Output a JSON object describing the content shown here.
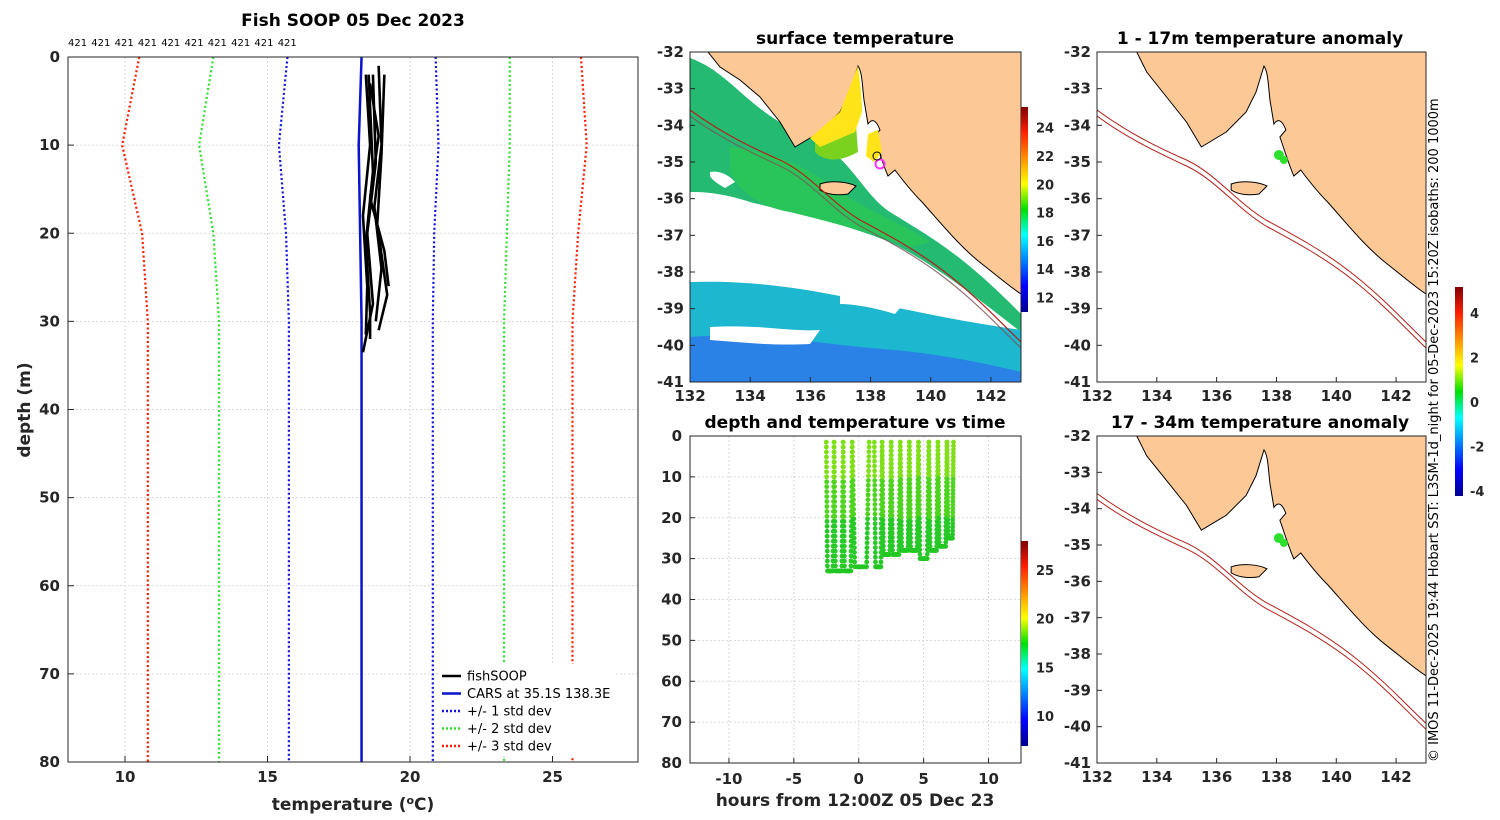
{
  "figure": {
    "credit": "© IMOS 11-Dec-2025 19:44 Hobart SST: L3SM-1d_night for 05-Dec-2023 15:20Z isobaths: 200 1000m"
  },
  "colors": {
    "land": "#fcc896",
    "fishsoop": "#000000",
    "cars": "#0a14c8",
    "std1": "#1010e0",
    "std2": "#2ee02e",
    "std3": "#ff1a00",
    "isobath": "#b3201a",
    "coast": "#000000"
  },
  "chart_data": [
    {
      "id": "profile",
      "type": "line",
      "title": "Fish SOOP 05 Dec 2023",
      "xlabel": "temperature (",
      "xlabel_sup": "o",
      "xlabel_end": "C)",
      "ylabel": "depth (m)",
      "xlim": [
        8,
        28
      ],
      "ylim": [
        0,
        80
      ],
      "xticks": [
        "10",
        "15",
        "20",
        "25"
      ],
      "yticks": [
        "0",
        "10",
        "20",
        "30",
        "40",
        "50",
        "60",
        "70",
        "80"
      ],
      "counts": [
        "421",
        "421",
        "421",
        "421",
        "421",
        "421",
        "421",
        "421",
        "421",
        "421"
      ],
      "legend": {
        "position": "bottom-right",
        "entries": [
          {
            "label": "fishSOOP",
            "style": "solid",
            "color": "#000000"
          },
          {
            "label": "CARS at 35.1S 138.3E",
            "style": "solid",
            "color": "#0a14c8"
          },
          {
            "label": "+/- 1 std dev",
            "style": "dotted",
            "color": "#1010e0"
          },
          {
            "label": "+/- 2 std dev",
            "style": "dotted",
            "color": "#2ee02e"
          },
          {
            "label": "+/- 3 std dev",
            "style": "dotted",
            "color": "#ff1a00"
          }
        ]
      },
      "depths": [
        0,
        10,
        20,
        30,
        80
      ],
      "cars_mean": [
        18.3,
        18.2,
        18.25,
        18.3,
        18.3
      ],
      "std_curves": [
        {
          "name": "-1",
          "color": "#1010e0",
          "temps": [
            15.7,
            15.4,
            15.65,
            15.75,
            15.75
          ]
        },
        {
          "name": "+1",
          "color": "#1010e0",
          "temps": [
            20.9,
            21.0,
            20.85,
            20.8,
            20.8
          ]
        },
        {
          "name": "-2",
          "color": "#2ee02e",
          "temps": [
            13.1,
            12.6,
            13.1,
            13.3,
            13.3
          ]
        },
        {
          "name": "+2",
          "color": "#2ee02e",
          "temps": [
            23.5,
            23.5,
            23.4,
            23.3,
            23.3
          ]
        },
        {
          "name": "-3",
          "color": "#ff1a00",
          "temps": [
            10.5,
            9.9,
            10.6,
            10.8,
            10.8
          ]
        },
        {
          "name": "+3",
          "color": "#ff1a00",
          "temps": [
            26.0,
            26.2,
            25.9,
            25.7,
            25.7
          ]
        }
      ],
      "fish_profiles": [
        {
          "d": [
            2,
            10,
            18,
            26,
            31.5
          ],
          "t": [
            18.45,
            18.6,
            18.35,
            18.5,
            18.45
          ]
        },
        {
          "d": [
            2,
            12,
            20,
            28,
            33.5
          ],
          "t": [
            18.7,
            18.8,
            18.5,
            18.7,
            18.35
          ]
        },
        {
          "d": [
            1,
            10,
            17,
            24,
            30
          ],
          "t": [
            18.9,
            19.0,
            18.75,
            19.0,
            18.8
          ]
        },
        {
          "d": [
            2,
            11,
            19,
            27,
            31
          ],
          "t": [
            19.1,
            19.0,
            18.85,
            19.2,
            18.9
          ]
        },
        {
          "d": [
            3,
            9,
            16,
            22,
            26
          ],
          "t": [
            18.6,
            18.9,
            18.6,
            19.1,
            19.25
          ]
        },
        {
          "d": [
            2,
            13,
            21,
            29,
            32
          ],
          "t": [
            18.55,
            18.7,
            18.45,
            18.6,
            18.6
          ]
        }
      ]
    },
    {
      "id": "sst",
      "type": "heatmap",
      "title": "surface temperature",
      "xlim": [
        132,
        143
      ],
      "ylim": [
        -41,
        -32
      ],
      "xticks": [
        "132",
        "134",
        "136",
        "138",
        "140",
        "142"
      ],
      "yticks": [
        "-32",
        "-33",
        "-34",
        "-35",
        "-36",
        "-37",
        "-38",
        "-39",
        "-40",
        "-41"
      ],
      "colorbar": {
        "range": [
          11,
          25.5
        ],
        "ticks": [
          "12",
          "14",
          "16",
          "18",
          "20",
          "22",
          "24"
        ],
        "colormap": "jet"
      },
      "marker": {
        "lon": 138.3,
        "lat": -35.1,
        "color": "#ff33ff"
      },
      "isobaths": [
        "200",
        "1000"
      ]
    },
    {
      "id": "timeseries",
      "type": "scatter",
      "title": "depth and temperature vs time",
      "xlabel": "hours from 12:00Z 05 Dec 23",
      "xlim": [
        -13,
        12.5
      ],
      "ylim": [
        0,
        80
      ],
      "xticks": [
        "-10",
        "-5",
        "0",
        "5",
        "10"
      ],
      "yticks": [
        "0",
        "10",
        "20",
        "30",
        "40",
        "50",
        "60",
        "70",
        "80"
      ],
      "colorbar": {
        "range": [
          7,
          28
        ],
        "ticks": [
          "10",
          "15",
          "20",
          "25"
        ],
        "colormap": "jet"
      },
      "dives": [
        {
          "t0": -2.5,
          "t1": -1.9,
          "max_depth": 33
        },
        {
          "t0": -1.9,
          "t1": -1.2,
          "max_depth": 33
        },
        {
          "t0": -1.2,
          "t1": -0.5,
          "max_depth": 33
        },
        {
          "t0": -0.5,
          "t1": 0.8,
          "max_depth": 32
        },
        {
          "t0": 1.2,
          "t1": 1.8,
          "max_depth": 32
        },
        {
          "t0": 1.8,
          "t1": 2.5,
          "max_depth": 29
        },
        {
          "t0": 2.5,
          "t1": 3.2,
          "max_depth": 29
        },
        {
          "t0": 3.2,
          "t1": 3.9,
          "max_depth": 28
        },
        {
          "t0": 3.9,
          "t1": 4.6,
          "max_depth": 28
        },
        {
          "t0": 4.6,
          "t1": 5.4,
          "max_depth": 30
        },
        {
          "t0": 5.4,
          "t1": 6.1,
          "max_depth": 28
        },
        {
          "t0": 6.1,
          "t1": 6.8,
          "max_depth": 27
        },
        {
          "t0": 6.8,
          "t1": 7.3,
          "max_depth": 25
        }
      ]
    },
    {
      "id": "anom1",
      "type": "heatmap",
      "title": "1 - 17m temperature anomaly",
      "xlim": [
        132,
        143
      ],
      "ylim": [
        -41,
        -32
      ],
      "xticks": [
        "132",
        "134",
        "136",
        "138",
        "140",
        "142"
      ],
      "yticks": [
        "-32",
        "-33",
        "-34",
        "-35",
        "-36",
        "-37",
        "-38",
        "-39",
        "-40",
        "-41"
      ]
    },
    {
      "id": "anom2",
      "type": "heatmap",
      "title": "17 - 34m temperature anomaly",
      "xlim": [
        132,
        143
      ],
      "ylim": [
        -41,
        -32
      ],
      "xticks": [
        "132",
        "134",
        "136",
        "138",
        "140",
        "142"
      ],
      "yticks": [
        "-32",
        "-33",
        "-34",
        "-35",
        "-36",
        "-37",
        "-38",
        "-39",
        "-40",
        "-41"
      ],
      "colorbar": {
        "range": [
          -4.2,
          5.2
        ],
        "ticks": [
          "4",
          "2",
          "0",
          "-2",
          "-4"
        ],
        "colormap": "jet"
      }
    }
  ]
}
